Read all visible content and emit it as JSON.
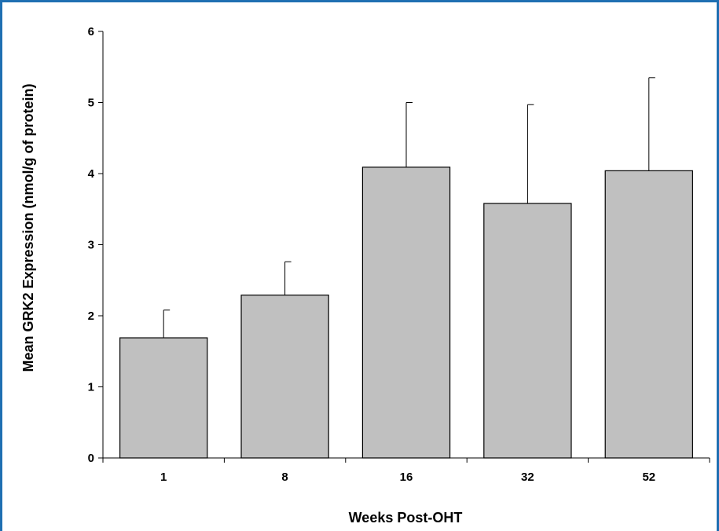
{
  "chart_data": {
    "type": "bar",
    "title": "",
    "xlabel": "Weeks Post-OHT",
    "ylabel": "Mean GRK2 Expression (nmol/g of protein)",
    "categories": [
      "1",
      "8",
      "16",
      "32",
      "52"
    ],
    "values": [
      1.69,
      2.29,
      4.09,
      3.58,
      4.04
    ],
    "error_upper": [
      2.08,
      2.76,
      5.0,
      4.97,
      5.35
    ],
    "ylim": [
      0,
      6
    ],
    "yticks": [
      "0",
      "1",
      "2",
      "3",
      "4",
      "5",
      "6"
    ],
    "grid": false,
    "legend": "none",
    "bar_color": "#c0c0c0",
    "bar_edge_color": "#000000",
    "frame_color": "#1f6fb2"
  }
}
